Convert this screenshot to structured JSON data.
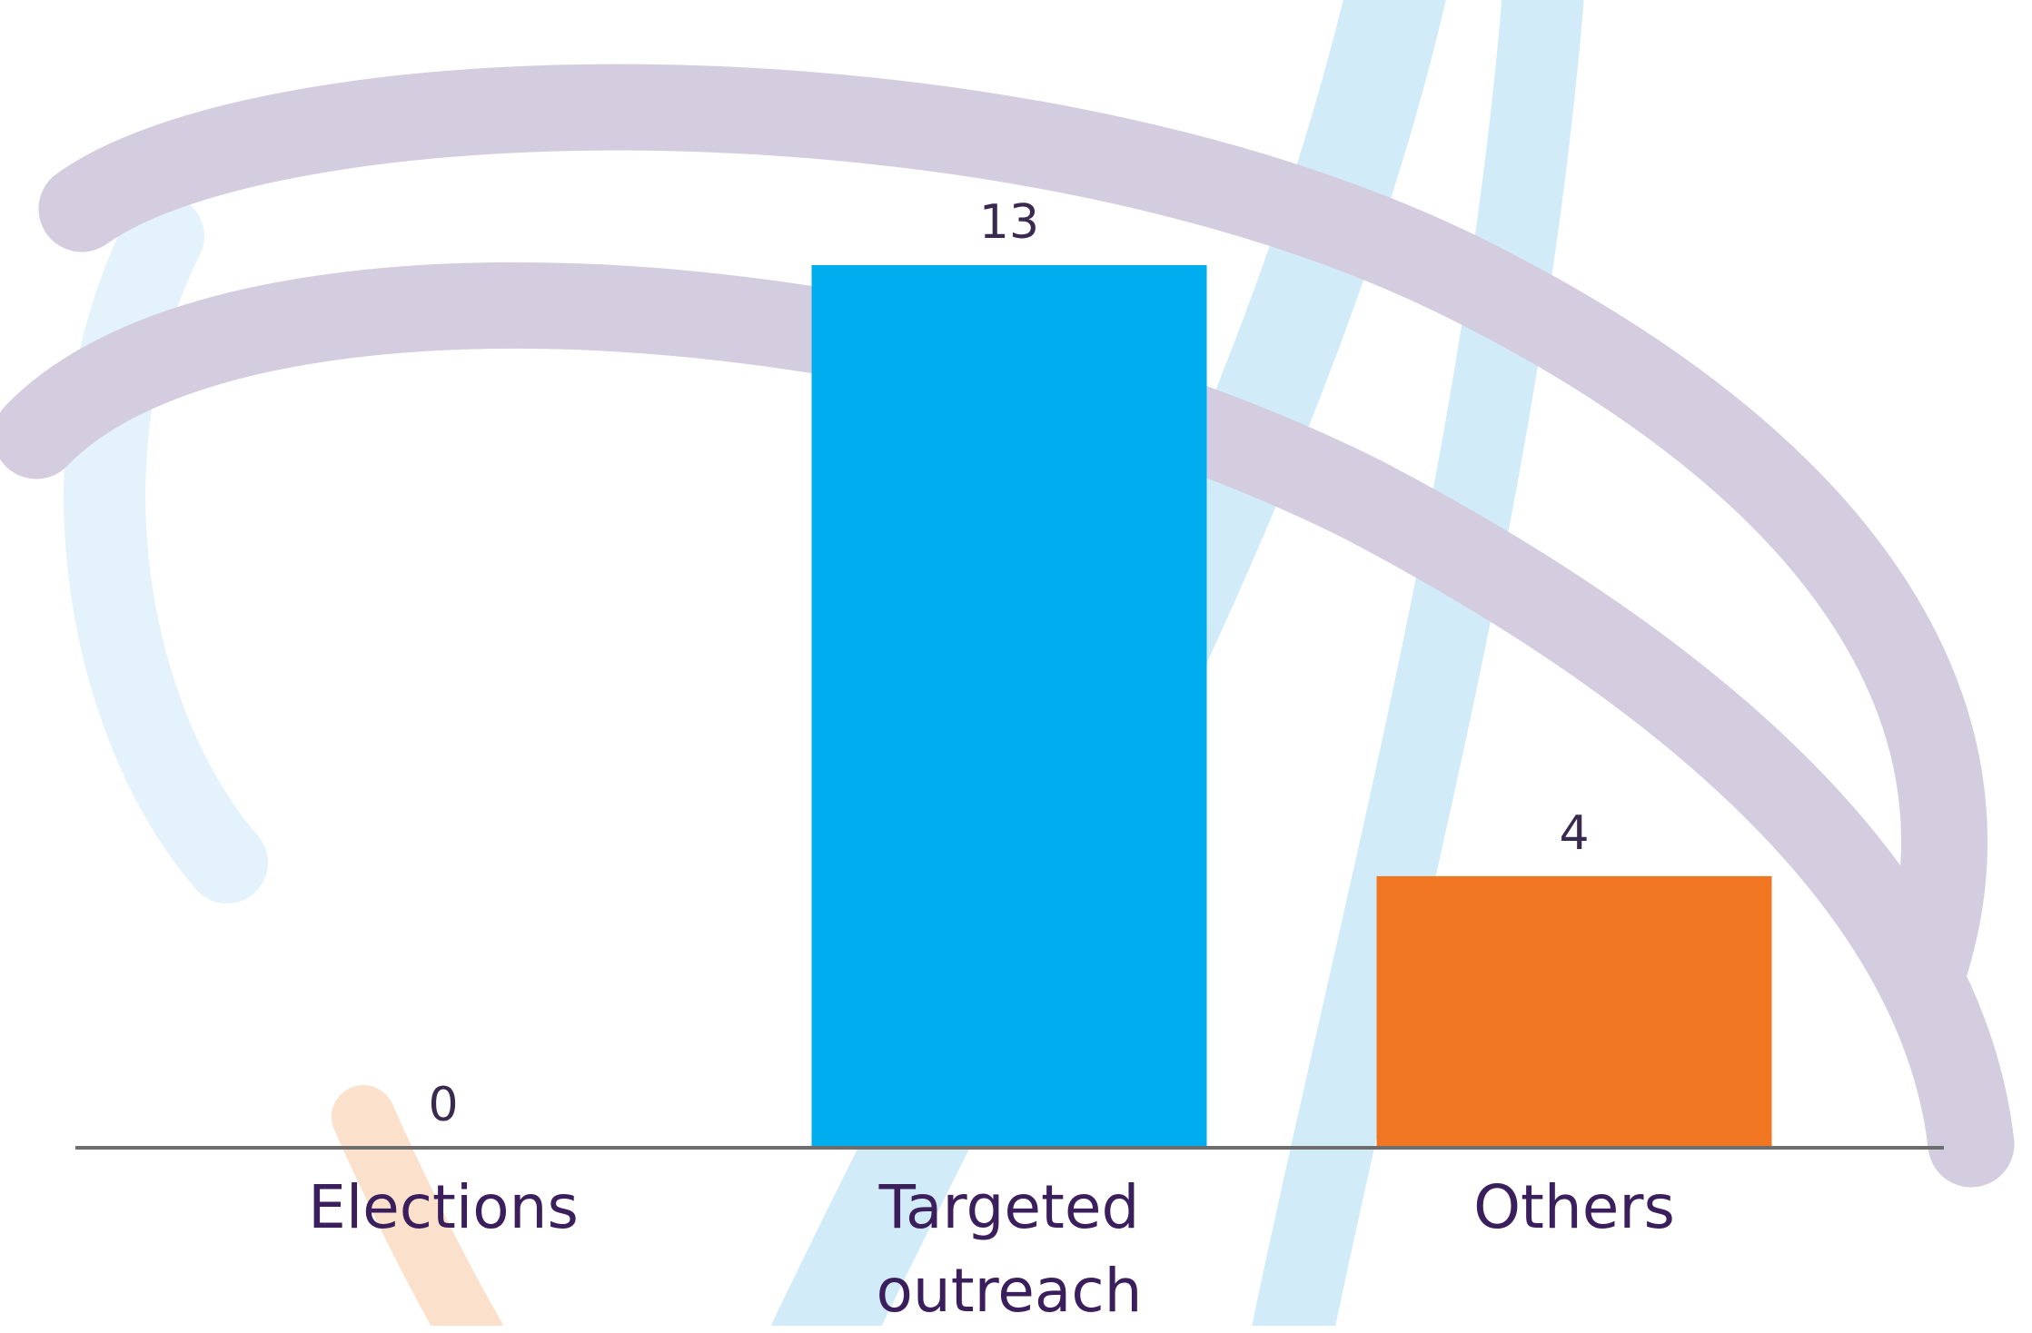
{
  "chart_data": {
    "type": "bar",
    "categories": [
      "Elections",
      "Targeted outreach",
      "Others"
    ],
    "values": [
      0,
      13,
      4
    ],
    "colors": [
      "#00aeef",
      "#00aeef",
      "#f07622"
    ]
  }
}
